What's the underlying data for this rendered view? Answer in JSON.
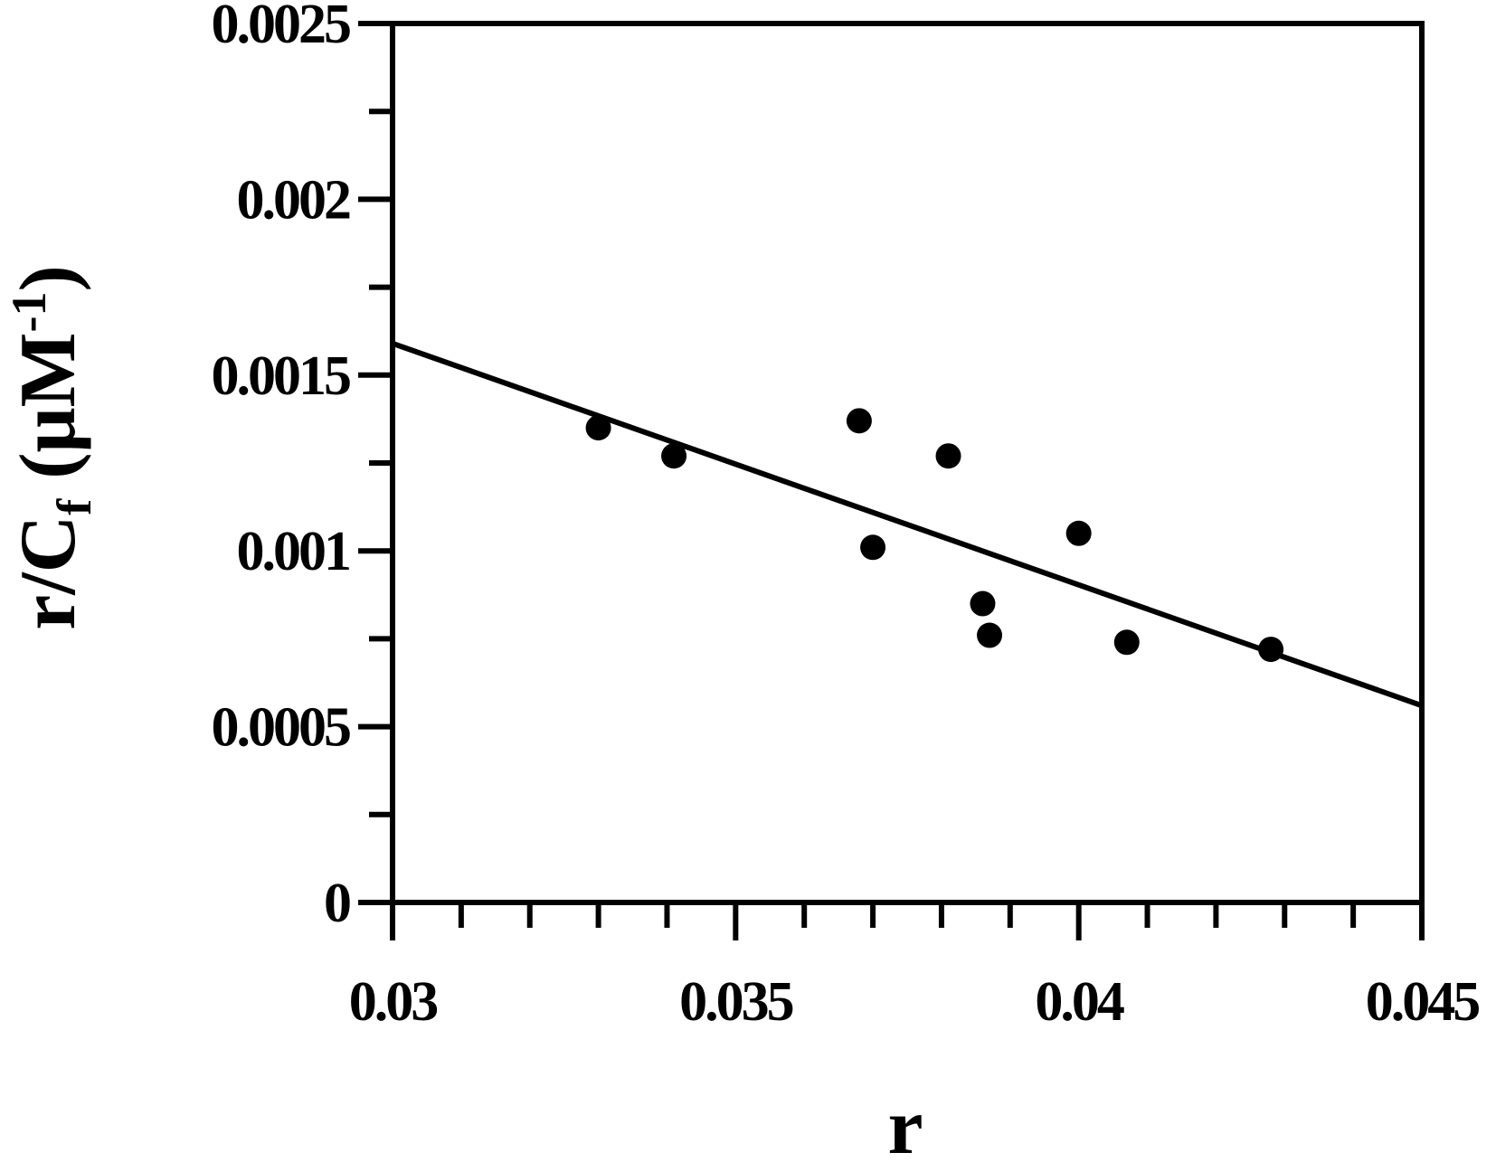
{
  "chart_data": {
    "type": "scatter",
    "xlabel": "r",
    "ylabel": {
      "main": "r/C",
      "sub": "f",
      "unit_open": " (μM",
      "unit_sup": "-1",
      "unit_close": ")"
    },
    "xlim": [
      0.03,
      0.045
    ],
    "ylim": [
      0,
      0.0025
    ],
    "x_ticks": [
      {
        "value": 0.03,
        "label": "0.03"
      },
      {
        "value": 0.035,
        "label": "0.035"
      },
      {
        "value": 0.04,
        "label": "0.04"
      },
      {
        "value": 0.045,
        "label": "0.045"
      }
    ],
    "x_minor_step": 0.001,
    "y_ticks": [
      {
        "value": 0,
        "label": "0"
      },
      {
        "value": 0.0005,
        "label": "0.0005"
      },
      {
        "value": 0.001,
        "label": "0.001"
      },
      {
        "value": 0.0015,
        "label": "0.0015"
      },
      {
        "value": 0.002,
        "label": "0.002"
      },
      {
        "value": 0.0025,
        "label": "0.0025"
      }
    ],
    "y_minor_step": 0.00025,
    "grid": false,
    "series": [
      {
        "points": [
          {
            "x": 0.033,
            "y": 0.00135
          },
          {
            "x": 0.0341,
            "y": 0.00127
          },
          {
            "x": 0.0368,
            "y": 0.00137
          },
          {
            "x": 0.037,
            "y": 0.00101
          },
          {
            "x": 0.0381,
            "y": 0.00127
          },
          {
            "x": 0.0386,
            "y": 0.00085
          },
          {
            "x": 0.0387,
            "y": 0.00076
          },
          {
            "x": 0.04,
            "y": 0.00105
          },
          {
            "x": 0.0407,
            "y": 0.00074
          },
          {
            "x": 0.0428,
            "y": 0.00072
          }
        ]
      }
    ],
    "fit_line": {
      "x": [
        0.03,
        0.045
      ],
      "y": [
        0.00159,
        0.00056
      ]
    },
    "colors": {
      "axis": "#000000",
      "marker": "#000000",
      "line": "#000000"
    }
  }
}
